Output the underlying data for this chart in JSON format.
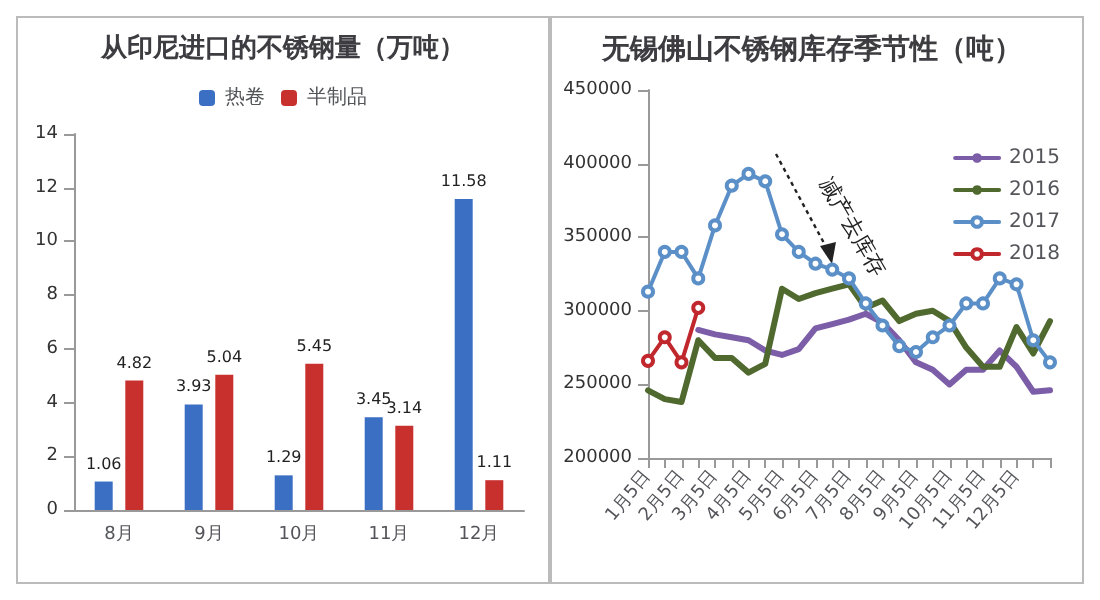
{
  "chart_data": [
    {
      "type": "bar",
      "title": "从印尼进口的不锈钢量（万吨）",
      "categories": [
        "8月",
        "9月",
        "10月",
        "11月",
        "12月"
      ],
      "series": [
        {
          "name": "热卷",
          "color": "#3a6fc4",
          "values": [
            1.06,
            3.93,
            1.29,
            3.45,
            11.58
          ]
        },
        {
          "name": "半制品",
          "color": "#c8302e",
          "values": [
            4.82,
            5.04,
            5.45,
            3.14,
            1.11
          ]
        }
      ],
      "ylim": [
        0,
        14
      ],
      "yticks": [
        0,
        2,
        4,
        6,
        8,
        10,
        12,
        14
      ],
      "grid": false,
      "legend": "top",
      "data_labels": true
    },
    {
      "type": "line",
      "title": "无锡佛山不锈钢库存季节性（吨）",
      "categories": [
        "1月5日",
        null,
        "2月5日",
        null,
        "3月5日",
        null,
        "4月5日",
        null,
        "5月5日",
        null,
        "6月5日",
        null,
        "7月5日",
        null,
        "8月5日",
        null,
        "9月5日",
        null,
        "10月5日",
        null,
        "11月5日",
        null,
        "12月5日",
        null,
        null
      ],
      "series": [
        {
          "name": "2015",
          "color": "#7b5ea7",
          "marker": "none",
          "values": [
            null,
            null,
            null,
            287000,
            284000,
            282000,
            280000,
            273000,
            270000,
            274000,
            288000,
            291000,
            294000,
            298000,
            292000,
            280000,
            265000,
            260000,
            250000,
            260000,
            260000,
            273000,
            262000,
            245000,
            246000
          ]
        },
        {
          "name": "2016",
          "color": "#50692f",
          "marker": "none",
          "values": [
            246000,
            240000,
            238000,
            280000,
            268000,
            268000,
            258000,
            264000,
            315000,
            308000,
            312000,
            315000,
            318000,
            302000,
            307000,
            293000,
            298000,
            300000,
            293000,
            275000,
            262000,
            262000,
            289000,
            271000,
            293000
          ]
        },
        {
          "name": "2017",
          "color": "#5b8fc7",
          "marker": "circle",
          "values": [
            313000,
            340000,
            340000,
            322000,
            358000,
            385000,
            393000,
            388000,
            352000,
            340000,
            332000,
            328000,
            322000,
            305000,
            290000,
            276000,
            272000,
            282000,
            290000,
            305000,
            305000,
            322000,
            318000,
            280000,
            265000
          ]
        },
        {
          "name": "2018",
          "color": "#c0282d",
          "marker": "circle",
          "values": [
            266000,
            282000,
            265000,
            302000,
            null,
            null,
            null,
            null,
            null,
            null,
            null,
            null,
            null,
            null,
            null,
            null,
            null,
            null,
            null,
            null,
            null,
            null,
            null,
            null,
            null
          ]
        }
      ],
      "ylim": [
        200000,
        450000
      ],
      "yticks": [
        200000,
        250000,
        300000,
        350000,
        400000,
        450000
      ],
      "grid": false,
      "legend": "right",
      "line_style": "solid",
      "annotations": [
        "减产去库存"
      ]
    }
  ]
}
